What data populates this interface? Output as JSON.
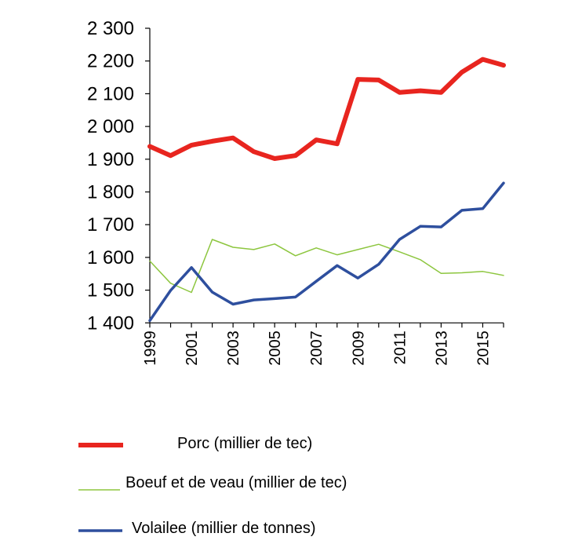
{
  "chart_data": {
    "type": "line",
    "x": [
      1999,
      2000,
      2001,
      2002,
      2003,
      2004,
      2005,
      2006,
      2007,
      2008,
      2009,
      2010,
      2011,
      2012,
      2013,
      2014,
      2015,
      2016
    ],
    "x_tick_labels": [
      "1999",
      "2001",
      "2003",
      "2005",
      "2007",
      "2009",
      "2011",
      "2013",
      "2015"
    ],
    "y_tick_labels": [
      "1 400",
      "1 500",
      "1 600",
      "1 700",
      "1 800",
      "1 900",
      "2 000",
      "2 100",
      "2 200",
      "2 300"
    ],
    "y_ticks": [
      1400,
      1500,
      1600,
      1700,
      1800,
      1900,
      2000,
      2100,
      2200,
      2300
    ],
    "ylim": [
      1400,
      2300
    ],
    "grid": false,
    "legend_placement": "bottom",
    "series": [
      {
        "name": "Porc (millier de tec)",
        "color": "#e8251f",
        "values": [
          1939,
          1911,
          1943,
          1955,
          1965,
          1923,
          1902,
          1911,
          1959,
          1947,
          2144,
          2142,
          2104,
          2109,
          2104,
          2166,
          2205,
          2187
        ]
      },
      {
        "name": "Boeuf et de veau (millier de tec)",
        "color": "#8dc63f",
        "values": [
          1589,
          1521,
          1493,
          1655,
          1631,
          1624,
          1641,
          1605,
          1629,
          1608,
          1624,
          1640,
          1617,
          1593,
          1551,
          1553,
          1557,
          1545
        ]
      },
      {
        "name": "Volailee (millier de tonnes)",
        "color": "#2e4f9e",
        "values": [
          1407,
          1499,
          1569,
          1494,
          1457,
          1470,
          1474,
          1479,
          1527,
          1575,
          1537,
          1579,
          1655,
          1695,
          1693,
          1744,
          1749,
          1827
        ]
      }
    ]
  }
}
